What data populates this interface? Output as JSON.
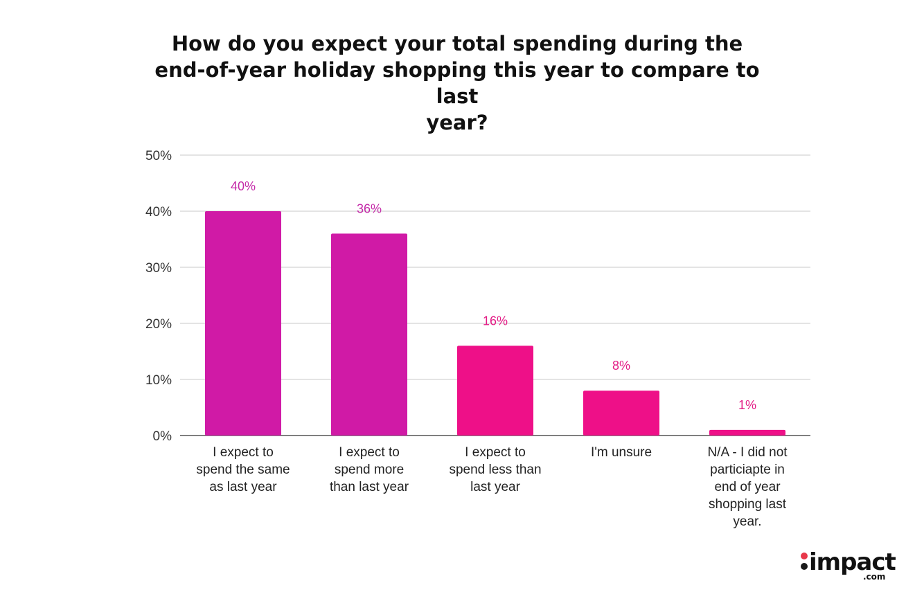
{
  "chart_data": {
    "type": "bar",
    "title": "How do you expect your total spending during the end-of-year holiday shopping this year to compare to last year?",
    "title_lines": [
      "How do you expect your total spending during the",
      "end-of-year holiday shopping this year to compare to last",
      "year?"
    ],
    "categories": [
      [
        "I expect to",
        "spend the same",
        "as last year"
      ],
      [
        "I expect to",
        "spend more",
        "than last year"
      ],
      [
        "I expect to",
        "spend less than",
        "last year"
      ],
      [
        "I'm unsure"
      ],
      [
        "N/A - I did not",
        "particiapte in",
        "end of year",
        "shopping last",
        "year."
      ]
    ],
    "values": [
      40,
      36,
      16,
      8,
      1
    ],
    "value_labels": [
      "40%",
      "36%",
      "16%",
      "8%",
      "1%"
    ],
    "bar_colors": [
      "#d01aa6",
      "#d01aa6",
      "#ee1088",
      "#ee1088",
      "#ee1088"
    ],
    "label_colors": [
      "#c42aa8",
      "#c42aa8",
      "#e31b85",
      "#e31b85",
      "#e31b85"
    ],
    "ylim": [
      0,
      50
    ],
    "yticks": [
      0,
      10,
      20,
      30,
      40,
      50
    ],
    "ytick_labels": [
      "0%",
      "10%",
      "20%",
      "30%",
      "40%",
      "50%"
    ],
    "grid": true,
    "legend": "none",
    "xlabel": "",
    "ylabel": ""
  },
  "colors": {
    "gridline": "#d4d4d4",
    "baseline": "#555555"
  },
  "logo": {
    "wordmark": "impact",
    "suffix": ".com"
  }
}
